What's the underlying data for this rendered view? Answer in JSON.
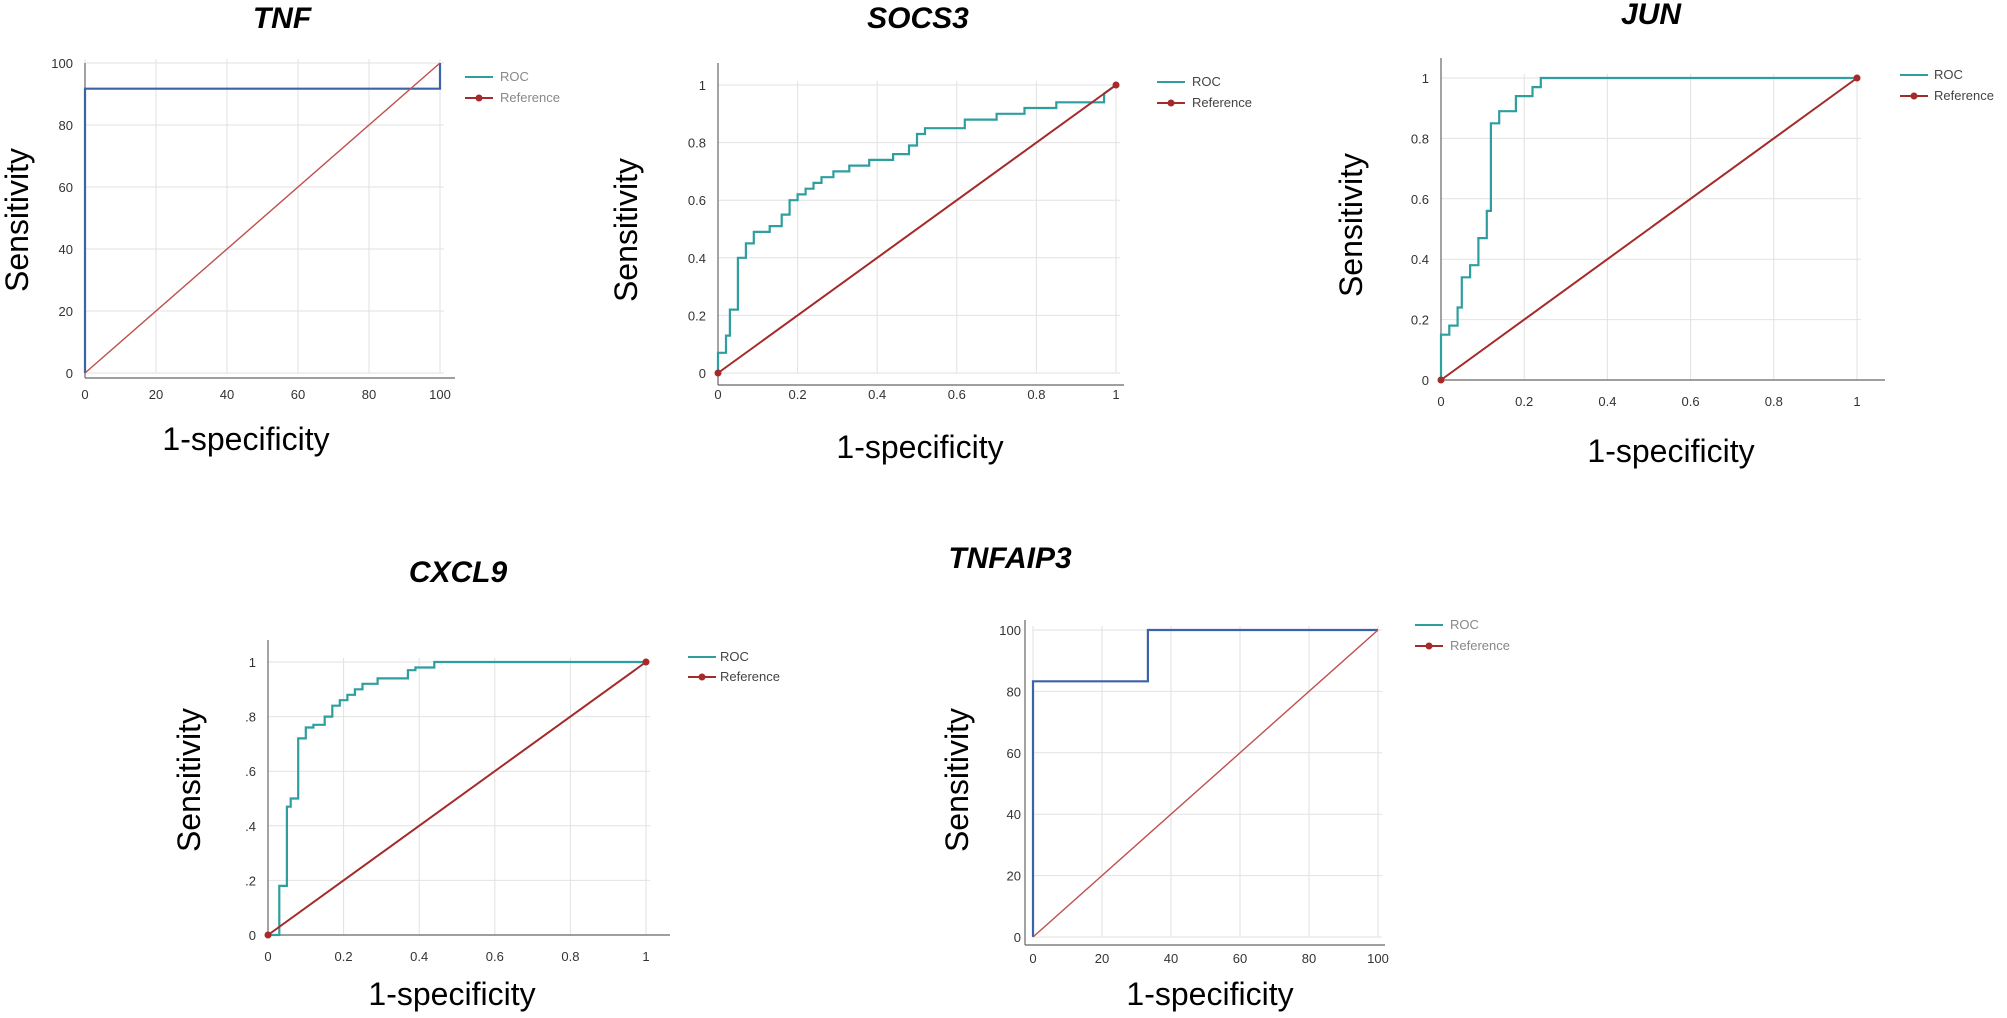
{
  "chart_data": [
    {
      "type": "line",
      "title": "TNF",
      "xlabel": "1-specificity",
      "ylabel": "Sensitivity",
      "xlim": [
        0,
        100
      ],
      "ylim": [
        0,
        100
      ],
      "xticks": [
        0,
        20,
        40,
        60,
        80,
        100
      ],
      "yticks": [
        0,
        20,
        40,
        60,
        80,
        100
      ],
      "xtick_labels": [
        "0",
        "20",
        "40",
        "60",
        "80",
        "100"
      ],
      "ytick_labels": [
        "0",
        "20",
        "40",
        "60",
        "80",
        "100"
      ],
      "grid": true,
      "legend": [
        "ROC",
        "Reference"
      ],
      "legend_position": "top-right",
      "series": [
        {
          "name": "ROC",
          "color": "#3a63a8",
          "x": [
            0,
            0,
            100,
            100
          ],
          "y": [
            0,
            91.7,
            91.7,
            100
          ]
        },
        {
          "name": "Reference",
          "color": "#c0504d",
          "x": [
            0,
            100
          ],
          "y": [
            0,
            100
          ]
        }
      ]
    },
    {
      "type": "line",
      "title": "SOCS3",
      "xlabel": "1-specificity",
      "ylabel": "Sensitivity",
      "xlim": [
        0,
        1
      ],
      "ylim": [
        0,
        1
      ],
      "xticks": [
        0,
        0.2,
        0.4,
        0.6,
        0.8,
        1
      ],
      "yticks": [
        0,
        0.2,
        0.4,
        0.6,
        0.8,
        1
      ],
      "xtick_labels": [
        "0",
        "0.2",
        "0.4",
        "0.6",
        "0.8",
        "1"
      ],
      "ytick_labels": [
        "0",
        "0.2",
        "0.4",
        "0.6",
        "0.8",
        "1"
      ],
      "grid": true,
      "legend": [
        "ROC",
        "Reference"
      ],
      "legend_position": "top-right",
      "series": [
        {
          "name": "ROC",
          "color": "#2f9e9e",
          "x": [
            0,
            0,
            0.02,
            0.02,
            0.03,
            0.03,
            0.05,
            0.05,
            0.07,
            0.07,
            0.09,
            0.09,
            0.13,
            0.13,
            0.16,
            0.16,
            0.18,
            0.18,
            0.2,
            0.2,
            0.22,
            0.22,
            0.24,
            0.24,
            0.26,
            0.26,
            0.29,
            0.29,
            0.33,
            0.33,
            0.38,
            0.38,
            0.44,
            0.44,
            0.48,
            0.48,
            0.5,
            0.5,
            0.52,
            0.52,
            0.62,
            0.62,
            0.7,
            0.7,
            0.77,
            0.77,
            0.85,
            0.85,
            0.97,
            0.97,
            1
          ],
          "y": [
            0,
            0.07,
            0.07,
            0.13,
            0.13,
            0.22,
            0.22,
            0.4,
            0.4,
            0.45,
            0.45,
            0.49,
            0.49,
            0.51,
            0.51,
            0.55,
            0.55,
            0.6,
            0.6,
            0.62,
            0.62,
            0.64,
            0.64,
            0.66,
            0.66,
            0.68,
            0.68,
            0.7,
            0.7,
            0.72,
            0.72,
            0.74,
            0.74,
            0.76,
            0.76,
            0.79,
            0.79,
            0.83,
            0.83,
            0.85,
            0.85,
            0.88,
            0.88,
            0.9,
            0.9,
            0.92,
            0.92,
            0.94,
            0.94,
            0.97,
            1
          ]
        },
        {
          "name": "Reference",
          "color": "#a52a2a",
          "x": [
            0,
            1
          ],
          "y": [
            0,
            1
          ]
        }
      ]
    },
    {
      "type": "line",
      "title": "JUN",
      "xlabel": "1-specificity",
      "ylabel": "Sensitivity",
      "xlim": [
        0,
        1
      ],
      "ylim": [
        0,
        1
      ],
      "xticks": [
        0,
        0.2,
        0.4,
        0.6,
        0.8,
        1
      ],
      "yticks": [
        0,
        0.2,
        0.4,
        0.6,
        0.8,
        1
      ],
      "xtick_labels": [
        "0",
        "0.2",
        "0.4",
        "0.6",
        "0.8",
        "1"
      ],
      "ytick_labels": [
        "0",
        "0.2",
        "0.4",
        "0.6",
        "0.8",
        "1"
      ],
      "grid": true,
      "legend": [
        "ROC",
        "Reference"
      ],
      "legend_position": "top-right",
      "series": [
        {
          "name": "ROC",
          "color": "#2f9e9e",
          "x": [
            0,
            0,
            0.02,
            0.02,
            0.04,
            0.04,
            0.05,
            0.05,
            0.07,
            0.07,
            0.09,
            0.09,
            0.11,
            0.11,
            0.12,
            0.12,
            0.14,
            0.14,
            0.18,
            0.18,
            0.22,
            0.22,
            0.24,
            0.24,
            1
          ],
          "y": [
            0,
            0.15,
            0.15,
            0.18,
            0.18,
            0.24,
            0.24,
            0.34,
            0.34,
            0.38,
            0.38,
            0.47,
            0.47,
            0.56,
            0.56,
            0.85,
            0.85,
            0.89,
            0.89,
            0.94,
            0.94,
            0.97,
            0.97,
            1,
            1
          ]
        },
        {
          "name": "Reference",
          "color": "#a52a2a",
          "x": [
            0,
            1
          ],
          "y": [
            0,
            1
          ]
        }
      ]
    },
    {
      "type": "line",
      "title": "CXCL9",
      "xlabel": "1-specificity",
      "ylabel": "Sensitivity",
      "xlim": [
        0,
        1
      ],
      "ylim": [
        0,
        1
      ],
      "xticks": [
        0,
        0.2,
        0.4,
        0.6,
        0.8,
        1
      ],
      "yticks": [
        0,
        0.2,
        0.4,
        0.6,
        0.8,
        1
      ],
      "xtick_labels": [
        "0",
        "0.2",
        "0.4",
        "0.6",
        "0.8",
        "1"
      ],
      "ytick_labels": [
        "0",
        ".2",
        ".4",
        ".6",
        ".8",
        "1"
      ],
      "grid": true,
      "legend": [
        "ROC",
        "Reference"
      ],
      "legend_position": "top-right",
      "series": [
        {
          "name": "ROC",
          "color": "#2f9e9e",
          "x": [
            0,
            0.03,
            0.03,
            0.05,
            0.05,
            0.06,
            0.06,
            0.08,
            0.08,
            0.1,
            0.1,
            0.12,
            0.12,
            0.15,
            0.15,
            0.17,
            0.17,
            0.19,
            0.19,
            0.21,
            0.21,
            0.23,
            0.23,
            0.25,
            0.25,
            0.29,
            0.29,
            0.37,
            0.37,
            0.39,
            0.39,
            0.44,
            0.44,
            1
          ],
          "y": [
            0,
            0,
            0.18,
            0.18,
            0.47,
            0.47,
            0.5,
            0.5,
            0.72,
            0.72,
            0.76,
            0.76,
            0.77,
            0.77,
            0.8,
            0.8,
            0.84,
            0.84,
            0.86,
            0.86,
            0.88,
            0.88,
            0.9,
            0.9,
            0.92,
            0.92,
            0.94,
            0.94,
            0.97,
            0.97,
            0.98,
            0.98,
            1,
            1
          ]
        },
        {
          "name": "Reference",
          "color": "#a52a2a",
          "x": [
            0,
            1
          ],
          "y": [
            0,
            1
          ]
        }
      ]
    },
    {
      "type": "line",
      "title": "TNFAIP3",
      "xlabel": "1-specificity",
      "ylabel": "Sensitivity",
      "xlim": [
        0,
        100
      ],
      "ylim": [
        0,
        100
      ],
      "xticks": [
        0,
        20,
        40,
        60,
        80,
        100
      ],
      "yticks": [
        0,
        20,
        40,
        60,
        80,
        100
      ],
      "xtick_labels": [
        "0",
        "20",
        "40",
        "60",
        "80",
        "100"
      ],
      "ytick_labels": [
        "0",
        "20",
        "40",
        "60",
        "80",
        "100"
      ],
      "grid": true,
      "legend": [
        "ROC",
        "Reference"
      ],
      "legend_position": "top-right",
      "series": [
        {
          "name": "ROC",
          "color": "#3a63a8",
          "x": [
            0,
            0,
            33.3,
            33.3,
            100
          ],
          "y": [
            0,
            83.3,
            83.3,
            100,
            100
          ]
        },
        {
          "name": "Reference",
          "color": "#c0504d",
          "x": [
            0,
            100
          ],
          "y": [
            0,
            100
          ]
        }
      ]
    }
  ]
}
